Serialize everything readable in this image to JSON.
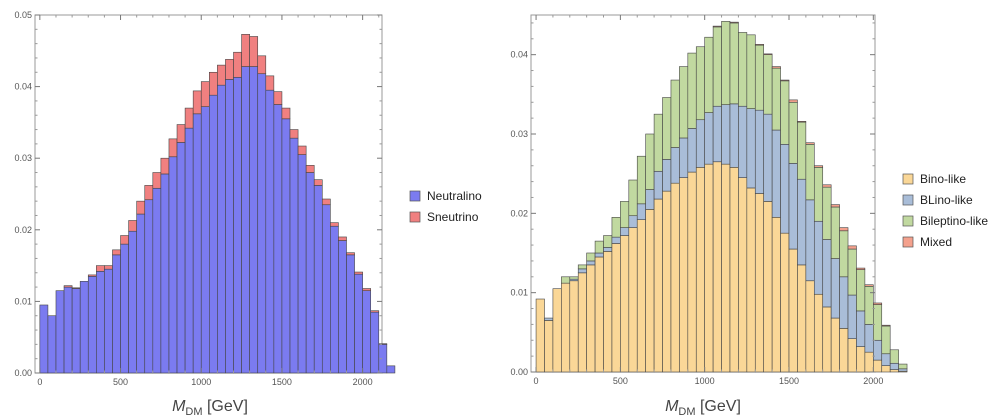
{
  "chart_data": [
    {
      "type": "bar",
      "stacked": true,
      "bin_width": 50,
      "x_start": 0,
      "xlim": [
        -30,
        2120
      ],
      "ylim": [
        0,
        0.05
      ],
      "xticks": [
        "0",
        "500",
        "1000",
        "1500",
        "2000"
      ],
      "yticks": [
        "0.00",
        "0.01",
        "0.02",
        "0.03",
        "0.04",
        "0.05"
      ],
      "xlabel_main": "M",
      "xlabel_sub": "DM",
      "xlabel_unit": " [GeV]",
      "legend_position": "right",
      "series": [
        {
          "name": "Neutralino",
          "color": "#7b7bf0",
          "values": [
            0.0095,
            0.008,
            0.0115,
            0.012,
            0.0118,
            0.0128,
            0.0135,
            0.0142,
            0.0145,
            0.0165,
            0.018,
            0.0198,
            0.0222,
            0.0242,
            0.0258,
            0.0278,
            0.0302,
            0.0322,
            0.0342,
            0.0362,
            0.0372,
            0.0388,
            0.0402,
            0.041,
            0.0413,
            0.0428,
            0.0428,
            0.0418,
            0.0395,
            0.0375,
            0.0355,
            0.0328,
            0.0305,
            0.028,
            0.0262,
            0.0235,
            0.0205,
            0.0185,
            0.0165,
            0.0138,
            0.0115,
            0.0085,
            0.004,
            0.001
          ]
        },
        {
          "name": "Sneutrino",
          "color": "#f08080",
          "values": [
            0.0,
            0.0,
            0.0,
            0.0002,
            0.0001,
            0.0,
            0.0002,
            0.0008,
            0.0005,
            0.0007,
            0.0012,
            0.0015,
            0.0018,
            0.002,
            0.0022,
            0.0022,
            0.0025,
            0.0025,
            0.0028,
            0.0032,
            0.0035,
            0.0032,
            0.0028,
            0.0028,
            0.0035,
            0.0045,
            0.0042,
            0.0025,
            0.002,
            0.0018,
            0.0015,
            0.0012,
            0.0012,
            0.001,
            0.0008,
            0.0008,
            0.0005,
            0.0005,
            0.0003,
            0.0003,
            0.0003,
            0.0002,
            0.0001,
            0.0
          ]
        }
      ]
    },
    {
      "type": "bar",
      "stacked": true,
      "bin_width": 50,
      "x_start": 0,
      "xlim": [
        -30,
        2010
      ],
      "ylim": [
        0,
        0.045
      ],
      "xticks": [
        "0",
        "500",
        "1000",
        "1500",
        "2000"
      ],
      "yticks": [
        "0.00",
        "0.01",
        "0.02",
        "0.03",
        "0.04"
      ],
      "xlabel_main": "M",
      "xlabel_sub": "DM",
      "xlabel_unit": " [GeV]",
      "legend_position": "right",
      "series": [
        {
          "name": "Bino-like",
          "color": "#fad797",
          "values": [
            0.0092,
            0.0065,
            0.0105,
            0.0112,
            0.0115,
            0.0125,
            0.0135,
            0.0145,
            0.0152,
            0.0162,
            0.0172,
            0.0182,
            0.0192,
            0.0205,
            0.0218,
            0.0228,
            0.0238,
            0.0245,
            0.0252,
            0.0258,
            0.0262,
            0.0265,
            0.0262,
            0.0258,
            0.0245,
            0.0232,
            0.0225,
            0.0215,
            0.0195,
            0.0175,
            0.0155,
            0.0135,
            0.0115,
            0.0098,
            0.0082,
            0.0068,
            0.0055,
            0.0042,
            0.0032,
            0.0025,
            0.0015,
            0.0008,
            0.0003,
            0.0001
          ]
        },
        {
          "name": "BLino-like",
          "color": "#a9bdd8",
          "values": [
            0.0,
            0.0003,
            0.0,
            0.0,
            0.0002,
            0.0005,
            0.0005,
            0.0005,
            0.0005,
            0.0008,
            0.001,
            0.0015,
            0.002,
            0.0025,
            0.0035,
            0.004,
            0.0045,
            0.005,
            0.0055,
            0.006,
            0.0065,
            0.007,
            0.0075,
            0.008,
            0.009,
            0.01,
            0.0105,
            0.011,
            0.011,
            0.0112,
            0.0108,
            0.0108,
            0.0102,
            0.0092,
            0.0085,
            0.0075,
            0.0065,
            0.0055,
            0.0045,
            0.0035,
            0.0025,
            0.0015,
            0.0008,
            0.0003
          ]
        },
        {
          "name": "Bileptino-like",
          "color": "#c1d9a0",
          "values": [
            0.0,
            0.0,
            0.0,
            0.0008,
            0.0003,
            0.0005,
            0.001,
            0.0015,
            0.0015,
            0.0025,
            0.0033,
            0.0045,
            0.006,
            0.007,
            0.0072,
            0.0078,
            0.0085,
            0.009,
            0.0095,
            0.0092,
            0.0095,
            0.01,
            0.0105,
            0.0102,
            0.0093,
            0.0093,
            0.0082,
            0.0075,
            0.0078,
            0.008,
            0.0077,
            0.0072,
            0.007,
            0.0068,
            0.0066,
            0.0065,
            0.0058,
            0.0058,
            0.0052,
            0.0048,
            0.0045,
            0.0035,
            0.0017,
            0.0006
          ]
        },
        {
          "name": "Mixed",
          "color": "#f4a18d",
          "values": [
            0.0,
            0.0,
            0.0,
            0.0,
            0.0,
            0.0,
            0.0,
            0.0,
            0.0,
            0.0,
            0.0,
            0.0,
            0.0,
            0.0,
            0.0,
            0.0,
            0.0,
            0.0,
            0.0,
            0.0,
            0.0,
            0.0001,
            0.0,
            0.0001,
            0.0,
            0.0,
            0.0001,
            0.0001,
            0.0002,
            0.0001,
            0.0003,
            0.0001,
            0.0002,
            0.0002,
            0.0003,
            0.0003,
            0.0004,
            0.0004,
            0.0002,
            0.0002,
            0.0002,
            0.0001,
            0.0,
            0.0
          ]
        }
      ]
    }
  ]
}
